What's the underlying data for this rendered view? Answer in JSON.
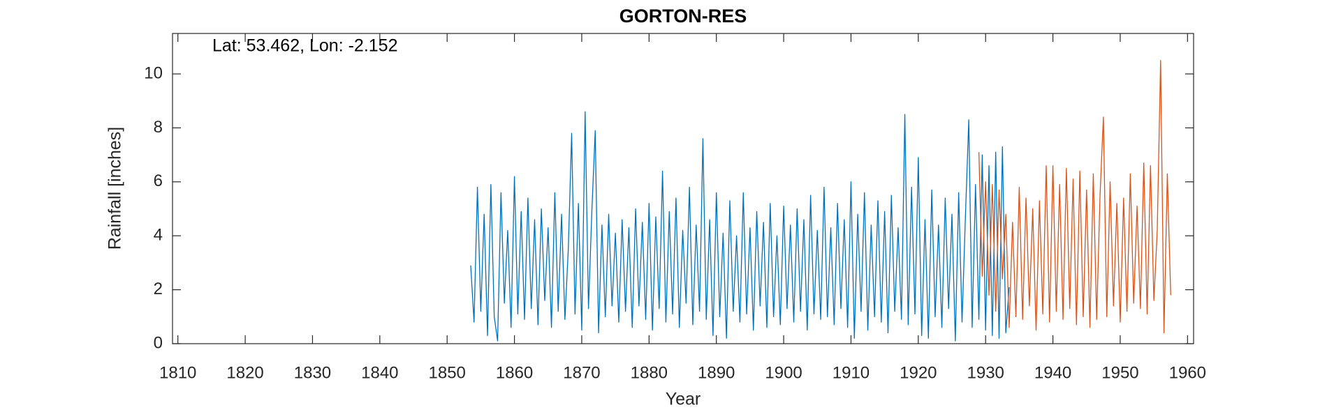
{
  "chart_data": {
    "type": "line",
    "title": "GORTON-RES",
    "xlabel": "Year",
    "ylabel": "Rainfall [inches]",
    "annotation": "Lat: 53.462, Lon: -2.152",
    "xlim": [
      1809.2,
      1960.9
    ],
    "xticks": [
      1810,
      1820,
      1830,
      1840,
      1850,
      1860,
      1870,
      1880,
      1890,
      1900,
      1910,
      1920,
      1930,
      1940,
      1950,
      1960
    ],
    "ylim": [
      0,
      11.5
    ],
    "yticks": [
      0,
      2,
      4,
      6,
      8,
      10
    ],
    "grid": false,
    "series": [
      {
        "color": "#0072BD",
        "x": [
          1853.5,
          1854,
          1854.5,
          1855,
          1855.5,
          1856,
          1856.5,
          1857,
          1857.5,
          1858,
          1858.5,
          1859,
          1859.5,
          1860,
          1860.5,
          1861,
          1861.5,
          1862,
          1862.5,
          1863,
          1863.5,
          1864,
          1864.5,
          1865,
          1865.5,
          1866,
          1866.5,
          1867,
          1867.5,
          1868,
          1868.5,
          1869,
          1869.5,
          1870,
          1870.5,
          1871,
          1871.5,
          1872,
          1872.5,
          1873,
          1873.5,
          1874,
          1874.5,
          1875,
          1875.5,
          1876,
          1876.5,
          1877,
          1877.5,
          1878,
          1878.5,
          1879,
          1879.5,
          1880,
          1880.5,
          1881,
          1881.5,
          1882,
          1882.5,
          1883,
          1883.5,
          1884,
          1884.5,
          1885,
          1885.5,
          1886,
          1886.5,
          1887,
          1887.5,
          1888,
          1888.5,
          1889,
          1889.5,
          1890,
          1890.5,
          1891,
          1891.5,
          1892,
          1892.5,
          1893,
          1893.5,
          1894,
          1894.5,
          1895,
          1895.5,
          1896,
          1896.5,
          1897,
          1897.5,
          1898,
          1898.5,
          1899,
          1899.5,
          1900,
          1900.5,
          1901,
          1901.5,
          1902,
          1902.5,
          1903,
          1903.5,
          1904,
          1904.5,
          1905,
          1905.5,
          1906,
          1906.5,
          1907,
          1907.5,
          1908,
          1908.5,
          1909,
          1909.5,
          1910,
          1910.5,
          1911,
          1911.5,
          1912,
          1912.5,
          1913,
          1913.5,
          1914,
          1914.5,
          1915,
          1915.5,
          1916,
          1916.5,
          1917,
          1917.5,
          1918,
          1918.5,
          1919,
          1919.5,
          1920,
          1920.5,
          1921,
          1921.5,
          1922,
          1922.5,
          1923,
          1923.5,
          1924,
          1924.5,
          1925,
          1925.5,
          1926,
          1926.5,
          1927,
          1927.5,
          1928,
          1928.5,
          1929,
          1929.5,
          1930,
          1930.5,
          1931,
          1931.5,
          1932,
          1932.5,
          1933,
          1933.5
        ],
        "values": [
          2.9,
          0.8,
          5.8,
          1.2,
          4.8,
          0.3,
          5.9,
          1.0,
          0.1,
          5.6,
          1.5,
          4.2,
          0.6,
          6.2,
          1.1,
          4.9,
          0.9,
          5.4,
          1.3,
          4.6,
          0.7,
          5.0,
          1.6,
          4.3,
          0.6,
          5.6,
          1.2,
          4.8,
          0.9,
          3.5,
          7.8,
          1.1,
          5.2,
          0.5,
          8.6,
          1.3,
          4.9,
          7.9,
          0.4,
          4.4,
          1.0,
          4.8,
          1.4,
          4.1,
          0.8,
          4.6,
          1.2,
          4.3,
          0.6,
          5.0,
          1.4,
          4.5,
          0.9,
          5.2,
          0.5,
          4.7,
          1.3,
          6.4,
          0.8,
          4.9,
          1.1,
          5.4,
          0.6,
          4.2,
          1.5,
          5.8,
          0.7,
          4.4,
          1.2,
          7.6,
          0.9,
          4.6,
          0.3,
          5.6,
          1.0,
          4.1,
          0.2,
          5.3,
          1.2,
          4.0,
          0.8,
          5.6,
          1.1,
          4.3,
          0.5,
          4.9,
          1.4,
          4.5,
          0.6,
          5.2,
          1.0,
          4.0,
          0.7,
          5.1,
          1.3,
          4.4,
          0.8,
          5.0,
          1.2,
          4.6,
          0.5,
          5.5,
          1.1,
          4.2,
          0.9,
          5.8,
          1.0,
          4.3,
          0.7,
          5.2,
          1.3,
          4.6,
          0.6,
          6.0,
          0.2,
          4.8,
          1.2,
          5.6,
          0.5,
          4.4,
          1.0,
          5.3,
          0.8,
          4.9,
          0.4,
          5.5,
          1.2,
          4.3,
          0.9,
          8.5,
          0.7,
          5.8,
          1.1,
          6.9,
          0.3,
          4.6,
          0.2,
          5.7,
          1.0,
          4.4,
          0.6,
          5.4,
          1.3,
          4.8,
          0.1,
          5.6,
          0.8,
          4.7,
          8.3,
          0.6,
          5.9,
          0.9,
          7.0,
          0.5,
          6.6,
          0.3,
          7.1,
          0.2,
          7.3,
          0.4,
          2.1
        ]
      },
      {
        "color": "#D95319",
        "x": [
          1929,
          1929.5,
          1930,
          1930.5,
          1931,
          1931.5,
          1932,
          1932.5,
          1933,
          1933.5,
          1934,
          1934.5,
          1935,
          1935.5,
          1936,
          1936.5,
          1937,
          1937.5,
          1938,
          1938.5,
          1939,
          1939.5,
          1940,
          1940.5,
          1941,
          1941.5,
          1942,
          1942.5,
          1943,
          1943.5,
          1944,
          1944.5,
          1945,
          1945.5,
          1946,
          1946.5,
          1947,
          1947.5,
          1948,
          1948.5,
          1949,
          1949.5,
          1950,
          1950.5,
          1951,
          1951.5,
          1952,
          1952.5,
          1953,
          1953.5,
          1954,
          1954.5,
          1955,
          1955.5,
          1956,
          1956.5,
          1957,
          1957.5
        ],
        "values": [
          7.1,
          2.5,
          6.0,
          1.8,
          5.9,
          1.2,
          5.7,
          2.4,
          4.8,
          0.6,
          4.5,
          1.0,
          5.8,
          0.9,
          5.4,
          1.4,
          5.0,
          0.5,
          5.3,
          1.1,
          6.6,
          0.8,
          6.6,
          1.2,
          5.9,
          0.9,
          6.5,
          1.3,
          6.1,
          0.7,
          6.4,
          1.0,
          5.7,
          0.6,
          6.3,
          0.9,
          5.5,
          8.4,
          1.0,
          6.0,
          1.4,
          5.2,
          0.8,
          5.4,
          1.2,
          6.3,
          1.5,
          5.1,
          1.3,
          6.7,
          1.1,
          6.6,
          1.6,
          4.2,
          10.5,
          0.4,
          6.3,
          1.8
        ]
      }
    ]
  }
}
